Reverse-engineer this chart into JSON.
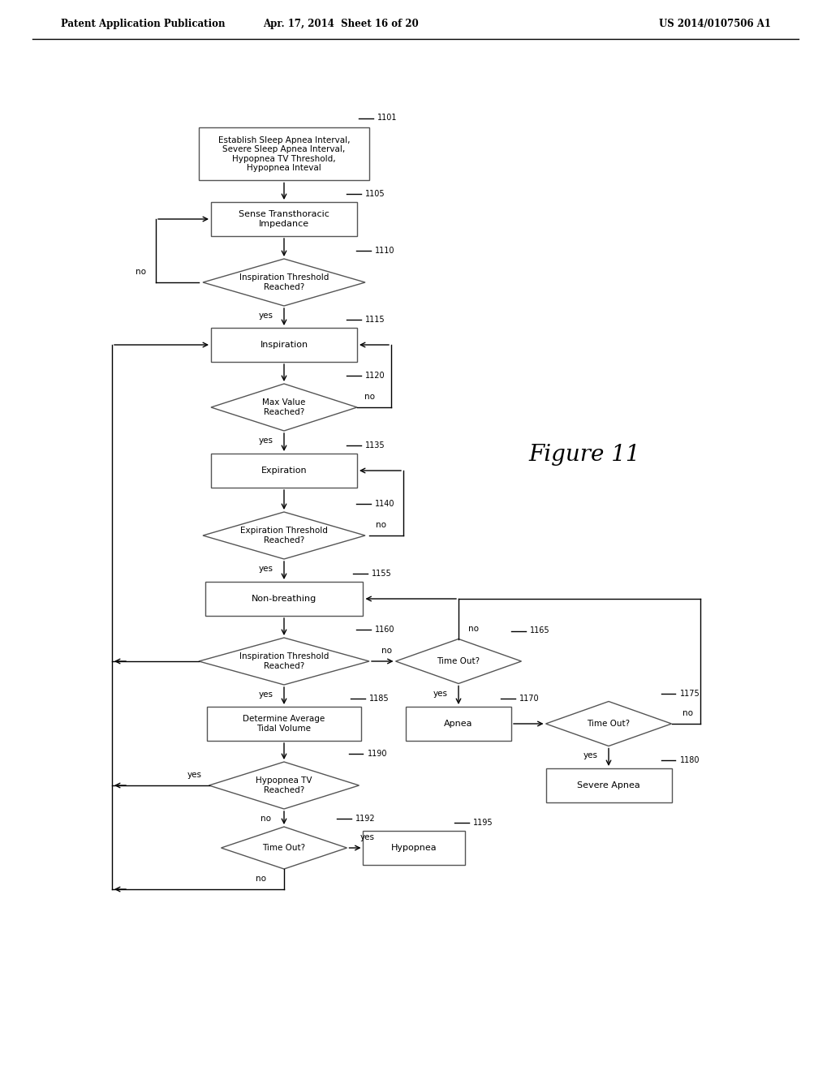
{
  "header_left": "Patent Application Publication",
  "header_center": "Apr. 17, 2014  Sheet 16 of 20",
  "header_right": "US 2014/0107506 A1",
  "figure_label": "Figure 11",
  "background_color": "#ffffff"
}
